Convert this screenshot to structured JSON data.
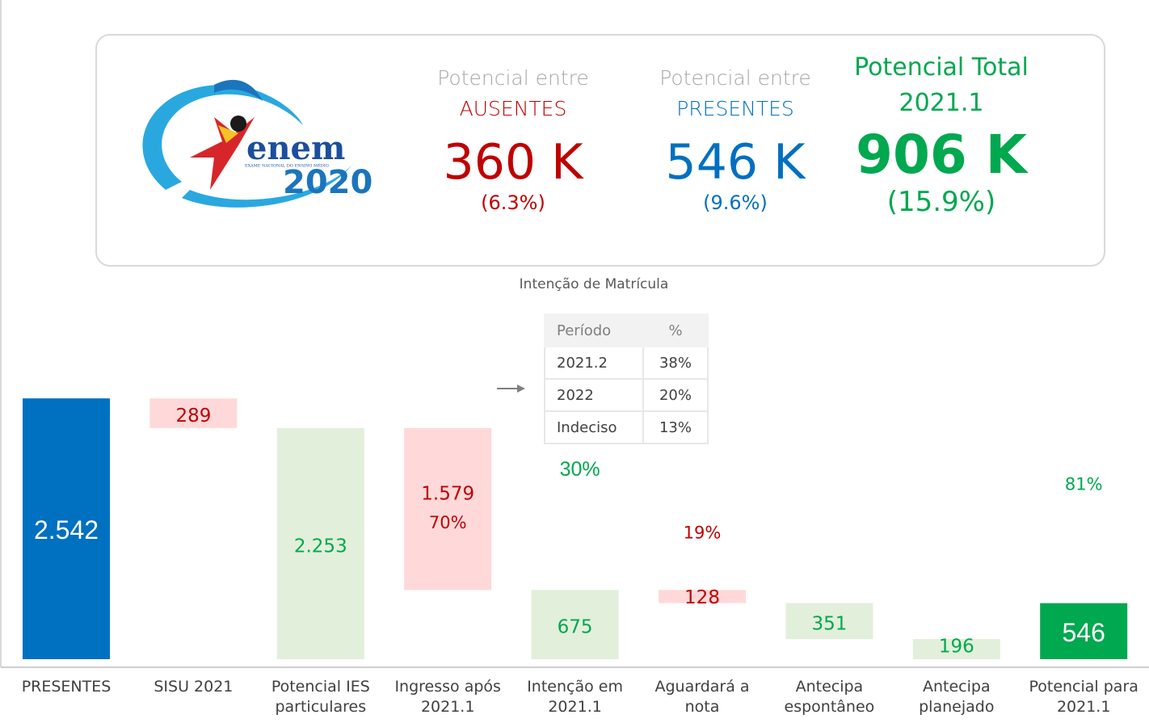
{
  "header": {
    "logo": {
      "word": "enem",
      "year": "2020",
      "caption": "EXAME NACIONAL DO ENSINO MÉDIO"
    },
    "ausentes": {
      "line1": "Potencial entre",
      "line2": "AUSENTES",
      "value": "360 K",
      "pct": "(6.3%)"
    },
    "presentes": {
      "line1": "Potencial entre",
      "line2": "PRESENTES",
      "value": "546 K",
      "pct": "(9.6%)"
    },
    "total": {
      "line1": "Potencial Total",
      "line2": "2021.1",
      "value": "906 K",
      "pct": "(15.9%)"
    }
  },
  "table": {
    "title": "Intenção de Matrícula",
    "header": [
      "Período",
      "%"
    ],
    "rows": [
      [
        "2021.2",
        "38%"
      ],
      [
        "2022",
        "20%"
      ],
      [
        "Indeciso",
        "13%"
      ]
    ]
  },
  "chart_data": {
    "type": "waterfall",
    "categories": [
      "PRESENTES",
      "SISU 2021",
      "Potencial IES particulares",
      "Ingresso após 2021.1",
      "Intenção em 2021.1",
      "Aguardará a nota",
      "Antecipa espontâneo",
      "Antecipa planejado",
      "Potencial para 2021.1"
    ],
    "values": [
      2542,
      289,
      2253,
      1579,
      675,
      128,
      351,
      196,
      546
    ],
    "value_labels": [
      "2.542",
      "289",
      "2.253",
      "1.579",
      "675",
      "128",
      "351",
      "196",
      "546"
    ],
    "measure": [
      "total",
      "decrease",
      "total",
      "decrease",
      "total",
      "decrease",
      "decrease",
      "decrease",
      "total"
    ],
    "colors": [
      "#0070c0",
      "#ffd9d9",
      "#e2efda",
      "#ffd9d9",
      "#e2efda",
      "#ffd9d9",
      "#e2efda",
      "#e2efda",
      "#00a84f"
    ],
    "label_colors": [
      "#ffffff",
      "#c00000",
      "#00a84f",
      "#c00000",
      "#00a84f",
      "#c00000",
      "#00a84f",
      "#00a84f",
      "#ffffff"
    ],
    "percent_labels": [
      null,
      null,
      null,
      "70%",
      "30%",
      "19%",
      null,
      null,
      "81%"
    ]
  }
}
